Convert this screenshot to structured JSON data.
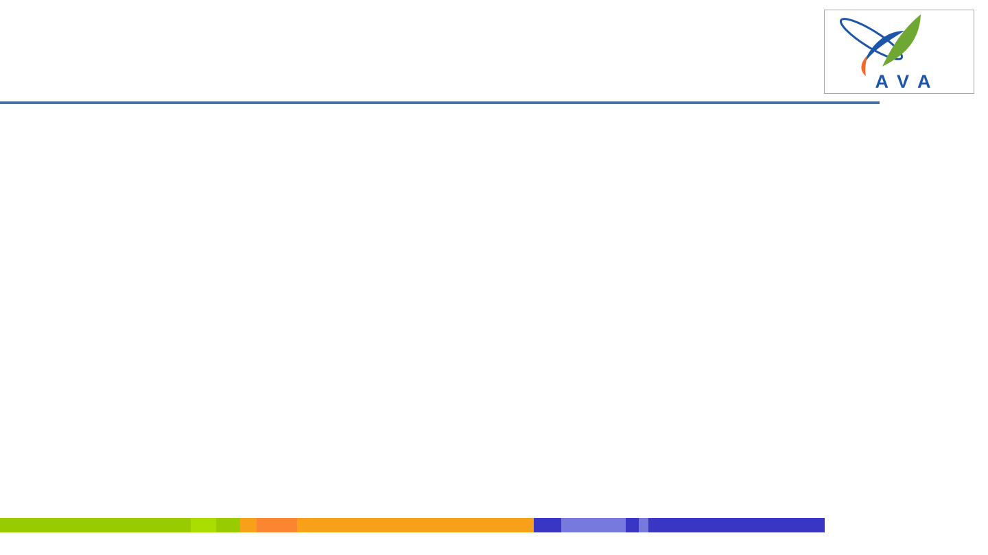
{
  "logo": {
    "text": "AVA",
    "colors": {
      "blue": "#1d56a8",
      "green": "#6ea832",
      "orange": "#f06a2c"
    }
  },
  "colors": {
    "title_rule": "#4a6fa5",
    "border": "#a8a8a8"
  },
  "bottom_bar": {
    "segments": [
      {
        "color": "#99cc00",
        "share": 278
      },
      {
        "color": "#aadd00",
        "share": 37
      },
      {
        "color": "#99cc00",
        "share": 35
      },
      {
        "color": "#f9a01b",
        "share": 24
      },
      {
        "color": "#fa8632",
        "share": 59
      },
      {
        "color": "#f9a01b",
        "share": 345
      },
      {
        "color": "#3a36c4",
        "share": 40
      },
      {
        "color": "#7879dc",
        "share": 94
      },
      {
        "color": "#3a36c4",
        "share": 19
      },
      {
        "color": "#7879dc",
        "share": 14
      },
      {
        "color": "#3a36c4",
        "share": 257
      }
    ]
  }
}
